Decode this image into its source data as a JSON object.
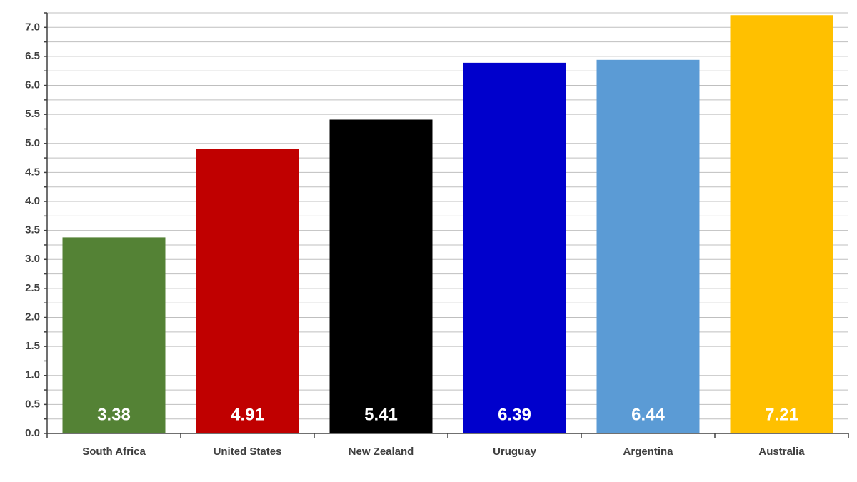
{
  "chart_data": {
    "type": "bar",
    "categories": [
      "South Africa",
      "United States",
      "New Zealand",
      "Uruguay",
      "Argentina",
      "Australia"
    ],
    "values": [
      3.38,
      4.91,
      5.41,
      6.39,
      6.44,
      7.21
    ],
    "colors": [
      "#548235",
      "#c00000",
      "#000000",
      "#0000cc",
      "#5b9bd5",
      "#ffc000"
    ],
    "ylim": [
      0,
      7.25
    ],
    "yticks": [
      {
        "value": 0,
        "label": "0.0"
      },
      0.5,
      {
        "value": 1,
        "label": "1.0"
      },
      1.5,
      {
        "value": 2,
        "label": "2.0"
      },
      2.5,
      {
        "value": 3,
        "label": "3.0"
      },
      3.5,
      {
        "value": 4,
        "label": "4.0"
      },
      4.5,
      {
        "value": 5,
        "label": "5.0"
      },
      5.5,
      {
        "value": 6,
        "label": "6.0"
      },
      6.5,
      {
        "value": 7,
        "label": "7.0"
      }
    ],
    "yticks_minor": [
      0.25,
      0.75,
      1.25,
      1.75,
      2.25,
      2.75,
      3.25,
      3.75,
      4.25,
      4.75,
      5.25,
      5.75,
      6.25,
      6.75,
      7.25
    ],
    "grid": true
  }
}
